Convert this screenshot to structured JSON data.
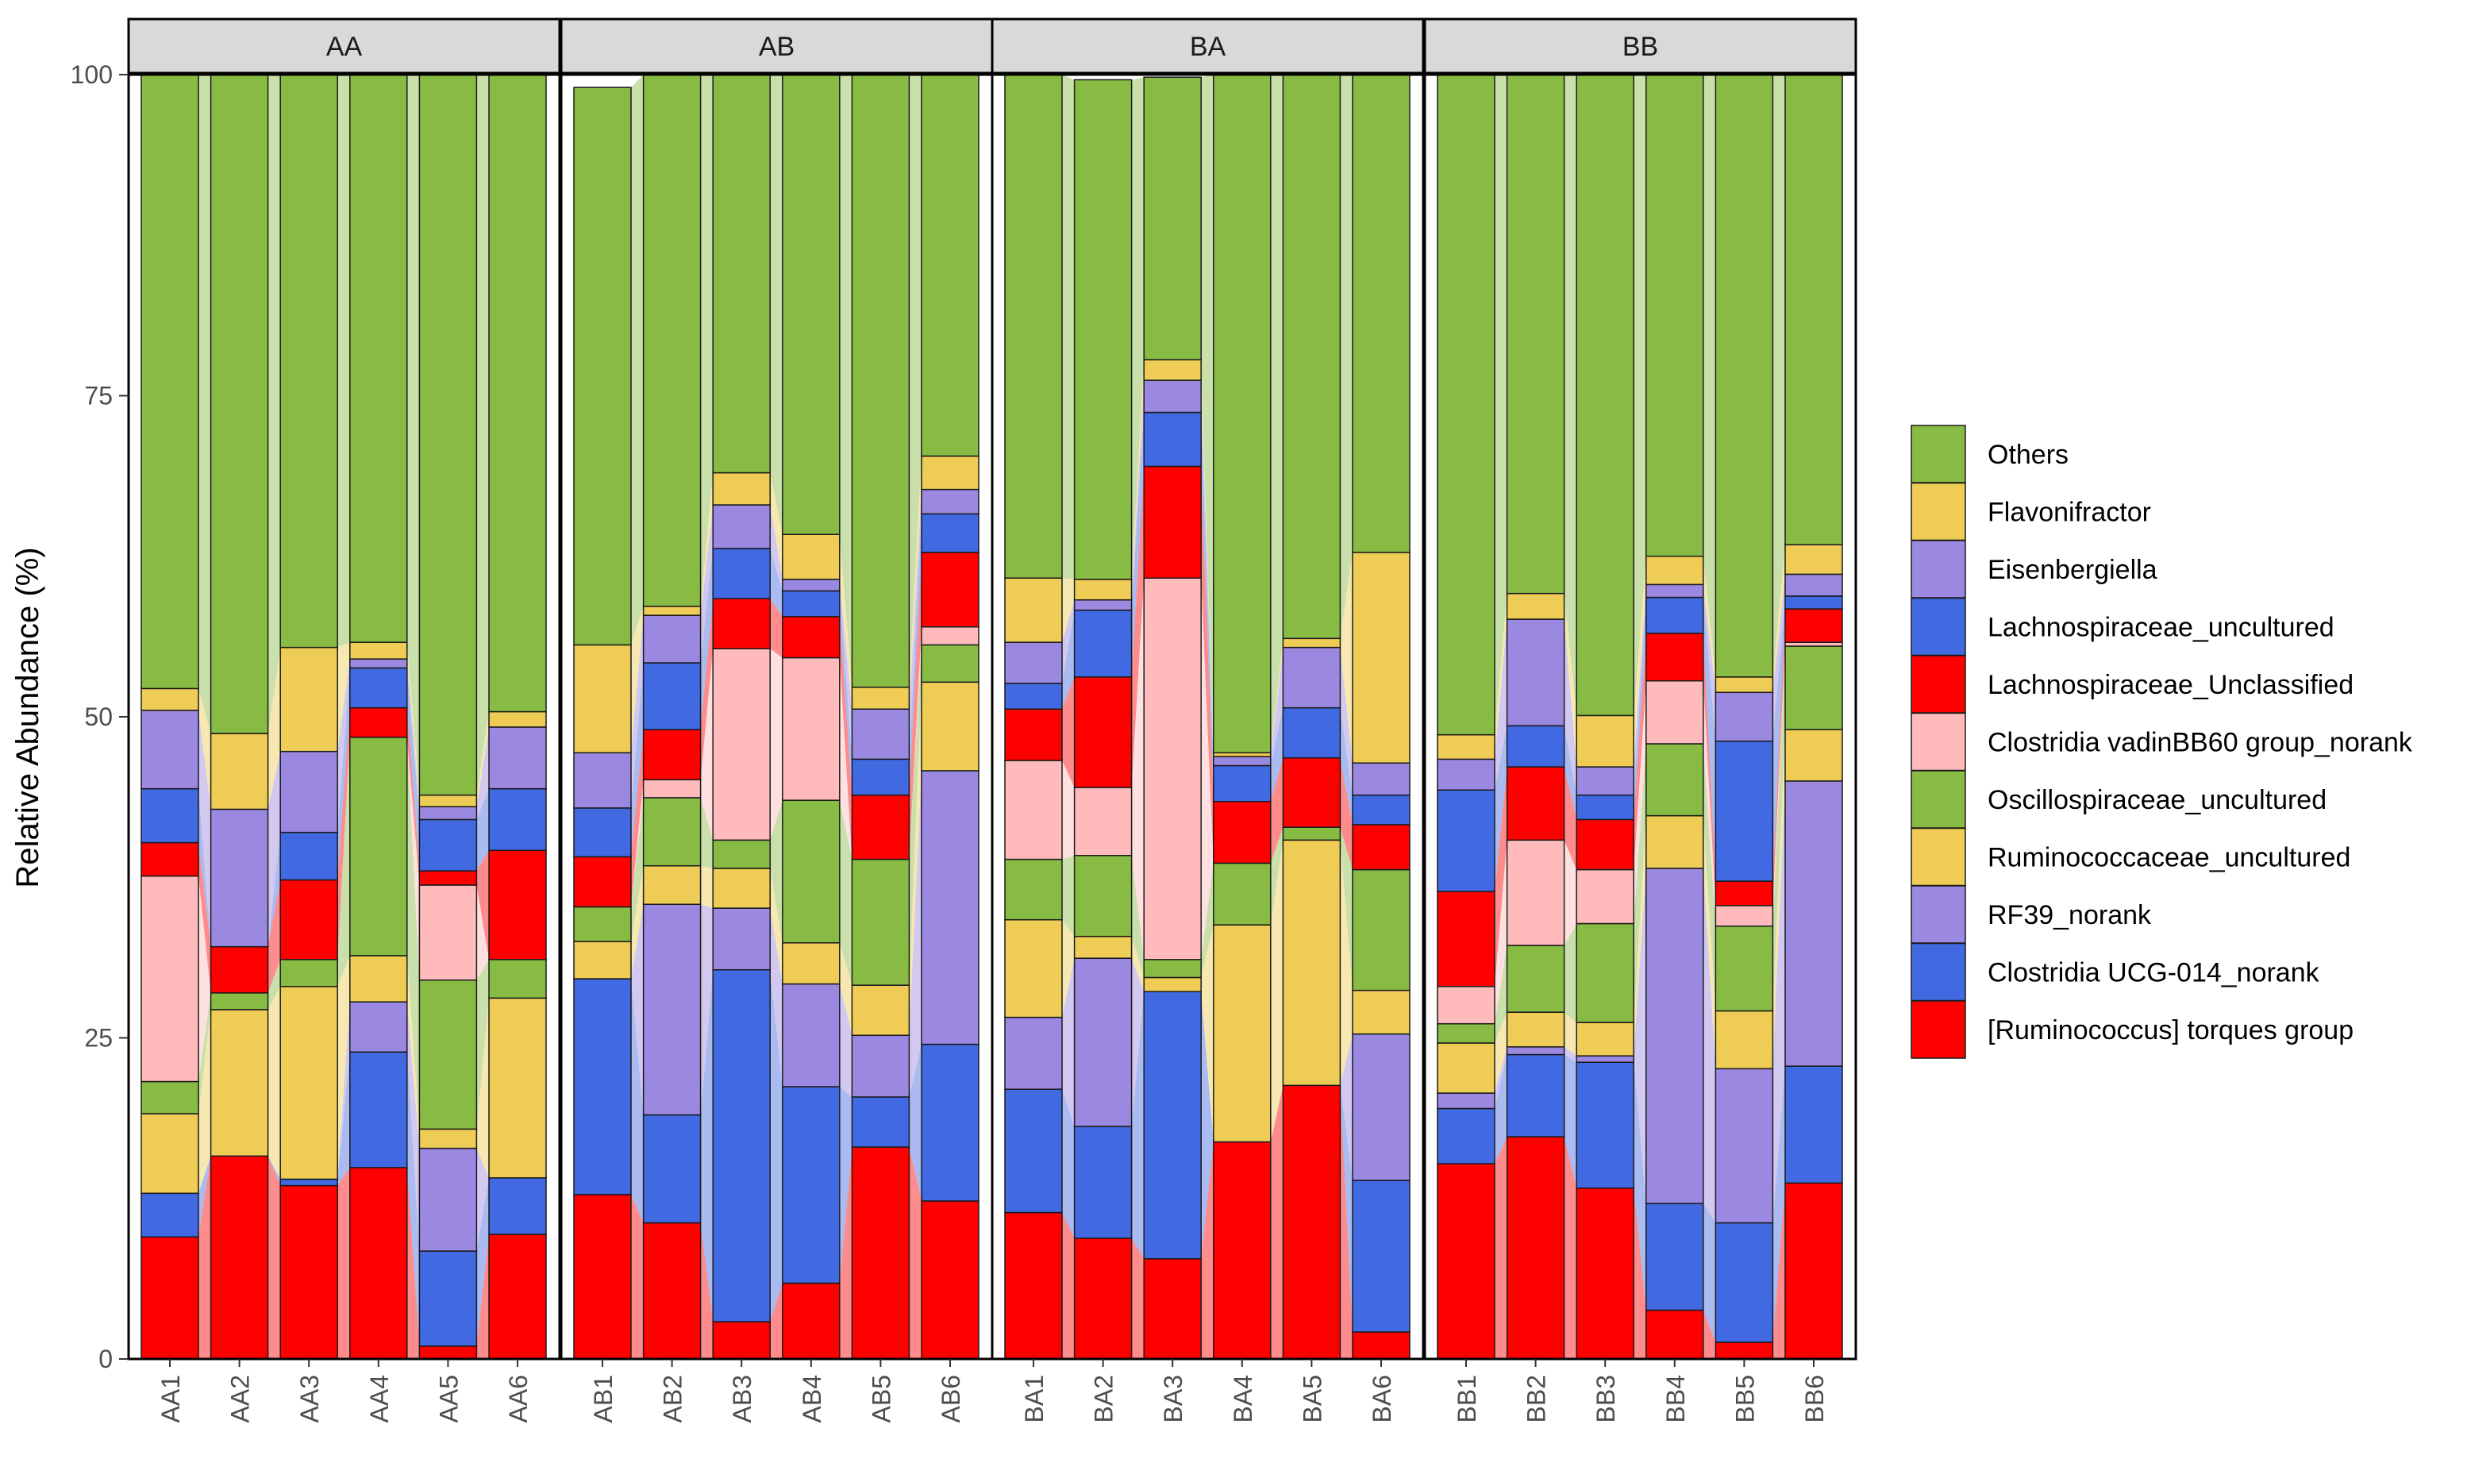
{
  "chart_data": {
    "type": "bar",
    "stacked": true,
    "alluvial_links": true,
    "ylabel": "Relative Abundance (%)",
    "ylim": [
      0,
      100
    ],
    "yticks": [
      0,
      25,
      50,
      75,
      100
    ],
    "facets": [
      "AA",
      "AB",
      "BA",
      "BB"
    ],
    "samples": [
      [
        "AA1",
        "AA2",
        "AA3",
        "AA4",
        "AA5",
        "AA6"
      ],
      [
        "AB1",
        "AB2",
        "AB3",
        "AB4",
        "AB5",
        "AB6"
      ],
      [
        "BA1",
        "BA2",
        "BA3",
        "BA4",
        "BA5",
        "BA6"
      ],
      [
        "BB1",
        "BB2",
        "BB3",
        "BB4",
        "BB5",
        "BB6"
      ]
    ],
    "legend": [
      "Others",
      "Flavonifractor",
      "Eisenbergiella",
      "Lachnospiraceae_uncultured",
      "Lachnospiraceae_Unclassified",
      "Clostridia vadinBB60 group_norank",
      "Oscillospiraceae_uncultured",
      "Ruminococcaceae_uncultured",
      "RF39_norank",
      "Clostridia UCG-014_norank",
      "[Ruminococcus] torques group"
    ],
    "legend_position": "right",
    "grid": false,
    "colors": {
      "[Ruminococcus] torques group": "#FF0000",
      "Clostridia UCG-014_norank": "#4169E1",
      "RF39_norank": "#9B88E0",
      "Ruminococcaceae_uncultured": "#EECC55",
      "Oscillospiraceae_uncultured": "#88BB44",
      "Clostridia vadinBB60 group_norank": "#FFBBBB",
      "Lachnospiraceae_Unclassified": "#FF0000",
      "Lachnospiraceae_uncultured": "#4169E1",
      "Eisenbergiella": "#9B88E0",
      "Flavonifractor": "#EECC55",
      "Others": "#88BB44"
    },
    "stack_order": [
      "[Ruminococcus] torques group",
      "Clostridia UCG-014_norank",
      "RF39_norank",
      "Ruminococcaceae_uncultured",
      "Oscillospiraceae_uncultured",
      "Clostridia vadinBB60 group_norank",
      "Lachnospiraceae_Unclassified",
      "Lachnospiraceae_uncultured",
      "Eisenbergiella",
      "Flavonifractor",
      "Others"
    ],
    "series": [
      {
        "name": "[Ruminococcus] torques group",
        "values": [
          9.5,
          15.8,
          13.5,
          14.9,
          1.0,
          9.7,
          12.8,
          10.6,
          2.9,
          5.9,
          16.5,
          12.3,
          11.4,
          9.4,
          7.8,
          16.9,
          21.3,
          2.1,
          15.2,
          17.3,
          13.3,
          3.8,
          1.3,
          13.7
        ]
      },
      {
        "name": "Clostridia UCG-014_norank",
        "values": [
          3.4,
          0,
          0.5,
          9.0,
          7.4,
          4.4,
          16.8,
          8.4,
          27.4,
          15.3,
          3.9,
          12.2,
          9.6,
          8.7,
          20.8,
          0,
          0,
          11.8,
          4.3,
          6.4,
          9.8,
          8.3,
          9.3,
          9.1
        ]
      },
      {
        "name": "RF39_norank",
        "values": [
          0,
          0,
          0,
          3.9,
          8.0,
          0,
          0,
          16.4,
          4.8,
          8.0,
          4.8,
          21.3,
          5.6,
          13.1,
          0,
          0,
          0,
          11.4,
          1.2,
          0.6,
          0.5,
          26.1,
          12.0,
          22.2
        ]
      },
      {
        "name": "Ruminococcaceae_uncultured",
        "values": [
          6.2,
          11.4,
          15.0,
          3.6,
          1.5,
          14.0,
          2.9,
          3.0,
          3.1,
          3.2,
          3.9,
          6.9,
          7.6,
          1.7,
          1.1,
          16.9,
          19.1,
          3.4,
          3.9,
          2.7,
          2.6,
          4.1,
          4.5,
          4.0
        ]
      },
      {
        "name": "Oscillospiraceae_uncultured",
        "values": [
          2.5,
          1.3,
          2.1,
          17.0,
          11.6,
          3.0,
          2.7,
          5.3,
          2.2,
          11.1,
          9.8,
          2.9,
          4.7,
          6.3,
          1.4,
          4.8,
          1.0,
          9.4,
          1.5,
          5.2,
          7.7,
          5.6,
          6.6,
          6.5
        ]
      },
      {
        "name": "Clostridia vadinBB60 group_norank",
        "values": [
          16.0,
          0,
          0,
          0,
          7.4,
          0,
          0,
          1.4,
          14.9,
          11.1,
          0,
          1.4,
          7.7,
          5.3,
          29.7,
          0,
          0,
          0,
          2.9,
          8.2,
          4.2,
          4.9,
          1.6,
          0.3
        ]
      },
      {
        "name": "Lachnospiraceae_Unclassified",
        "values": [
          2.6,
          3.6,
          6.2,
          2.3,
          1.1,
          8.5,
          3.9,
          3.9,
          3.9,
          3.2,
          5.0,
          5.8,
          4.0,
          8.6,
          8.7,
          4.8,
          5.4,
          3.5,
          7.4,
          5.7,
          3.9,
          3.7,
          1.9,
          2.6
        ]
      },
      {
        "name": "Lachnospiraceae_uncultured",
        "values": [
          4.2,
          0,
          3.7,
          3.1,
          4.0,
          4.8,
          3.8,
          5.2,
          3.9,
          2.0,
          2.8,
          3.0,
          2.0,
          5.2,
          4.2,
          2.8,
          3.9,
          2.3,
          7.9,
          3.2,
          1.9,
          2.8,
          10.9,
          1.0
        ]
      },
      {
        "name": "Eisenbergiella",
        "values": [
          6.1,
          10.7,
          6.3,
          0.7,
          1.0,
          4.8,
          4.3,
          3.7,
          3.4,
          0.9,
          3.9,
          1.9,
          3.2,
          0.8,
          2.5,
          0.7,
          4.7,
          2.5,
          2.4,
          8.3,
          2.2,
          1.0,
          3.8,
          1.7
        ]
      },
      {
        "name": "Flavonifractor",
        "values": [
          1.7,
          5.9,
          8.1,
          1.3,
          0.9,
          1.2,
          8.4,
          0.7,
          2.5,
          3.5,
          1.7,
          2.6,
          5.0,
          1.6,
          1.6,
          0.3,
          0.7,
          16.4,
          1.9,
          2.0,
          4.0,
          2.2,
          1.2,
          2.3
        ]
      },
      {
        "name": "Others",
        "values": [
          47.8,
          51.3,
          44.6,
          44.2,
          56.1,
          49.6,
          43.4,
          41.4,
          31.0,
          35.8,
          48.0,
          29.7,
          39.2,
          38.9,
          22.0,
          52.8,
          43.9,
          37.2,
          51.4,
          40.4,
          50.1,
          37.5,
          46.9,
          36.6
        ]
      }
    ]
  }
}
